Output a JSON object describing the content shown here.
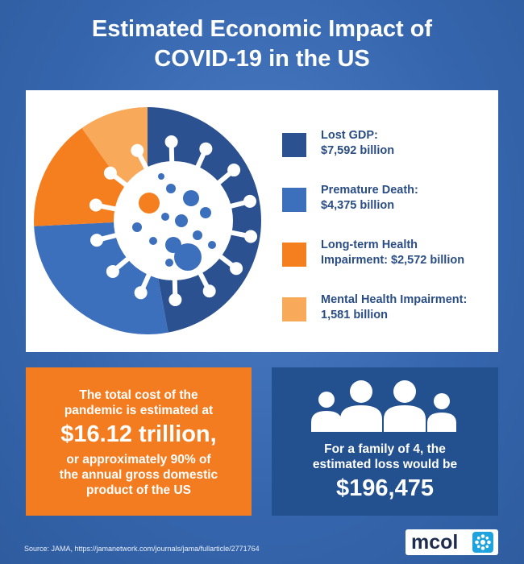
{
  "title": {
    "line1": "Estimated Economic Impact of",
    "line2": "COVID-19 in the US"
  },
  "chart_data": {
    "type": "pie",
    "title": "Estimated Economic Impact of COVID-19 in the US",
    "unit": "billion",
    "slices": [
      {
        "name": "Lost GDP",
        "value": 7592,
        "color": "#2c5191",
        "label_line1": "Lost GDP:",
        "label_line2": "$7,592 billion"
      },
      {
        "name": "Premature Death",
        "value": 4375,
        "color": "#3c6fbc",
        "label_line1": "Premature Death:",
        "label_line2": "$4,375 billion"
      },
      {
        "name": "Long-term Health Impairment",
        "value": 2572,
        "color": "#f57f1e",
        "label_line1": "Long-term Health",
        "label_line2": "Impairment: $2,572 billion"
      },
      {
        "name": "Mental Health Impairment",
        "value": 1581,
        "color": "#f9a95a",
        "label_line1": "Mental Health Impairment:",
        "label_line2": "1,581 billion"
      }
    ],
    "legend_position": "right"
  },
  "total_box": {
    "line1": "The total cost of the",
    "line2": "pandemic is estimated at",
    "amount": "$16.12 trillion,",
    "line3": "or approximately 90% of",
    "line4": "the annual gross domestic",
    "line5": "product of the US"
  },
  "family_box": {
    "line1": "For a family of 4, the",
    "line2": "estimated loss would be",
    "amount": "$196,475",
    "icon": "family-of-four-icon"
  },
  "source": "Source:  JAMA, https://jamanetwork.com/journals/jama/fullarticle/2771764",
  "logo": {
    "text": "mcol",
    "icon": "mcol-logo-icon"
  },
  "colors": {
    "background": "#3b6cb5",
    "navy": "#23508f",
    "orange": "#f47c20",
    "legend_text": "#2a4d86"
  }
}
